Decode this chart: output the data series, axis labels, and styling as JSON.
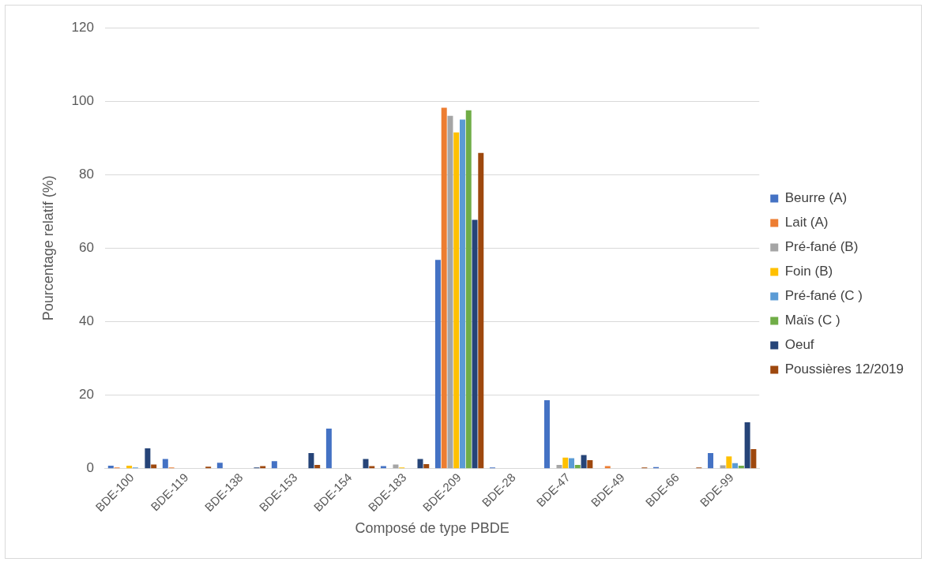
{
  "chart_data": {
    "type": "bar",
    "xlabel": "Composé de type PBDE",
    "ylabel": "Pourcentage relatif (%)",
    "categories": [
      "BDE-100",
      "BDE-119",
      "BDE-138",
      "BDE-153",
      "BDE-154",
      "BDE-183",
      "BDE-209",
      "BDE-28",
      "BDE-47",
      "BDE-49",
      "BDE-66",
      "BDE-99"
    ],
    "series": [
      {
        "name": "Beurre (A)",
        "color": "#4472c4",
        "values": [
          0.8,
          2.6,
          1.6,
          2.0,
          10.9,
          0.7,
          56.8,
          0.3,
          18.6,
          null,
          0.4,
          4.2
        ]
      },
      {
        "name": "Lait (A)",
        "color": "#ed7d31",
        "values": [
          0.3,
          0.3,
          0,
          0,
          0,
          0,
          98.2,
          0,
          0,
          0.7,
          0,
          0
        ]
      },
      {
        "name": "Pré-fané (B)",
        "color": "#a5a5a5",
        "values": [
          0,
          0,
          0,
          0,
          null,
          1.1,
          96,
          0,
          1.0,
          0,
          0,
          0.9
        ]
      },
      {
        "name": "Foin (B)",
        "color": "#ffc000",
        "values": [
          0.8,
          0,
          0,
          null,
          null,
          0.3,
          91.5,
          0,
          3.0,
          0,
          0,
          3.3
        ]
      },
      {
        "name": "Pré-fané (C )",
        "color": "#5b9bd5",
        "values": [
          0.3,
          0,
          0,
          0,
          0,
          0,
          95,
          0,
          2.8,
          0,
          0,
          1.5
        ]
      },
      {
        "name": "Maïs (C )",
        "color": "#70ad47",
        "values": [
          0,
          0,
          0,
          0,
          0,
          null,
          97.5,
          0,
          1.0,
          0,
          0,
          0.8
        ]
      },
      {
        "name": "Oeuf",
        "color": "#264478",
        "values": [
          5.5,
          0,
          0.3,
          4.2,
          2.6,
          2.6,
          67.7,
          0,
          3.7,
          0,
          0,
          12.6
        ]
      },
      {
        "name": "Poussières 12/2019",
        "color": "#9e480e",
        "values": [
          1.1,
          0.5,
          0.7,
          1.0,
          0.7,
          1.2,
          85.9,
          0,
          2.3,
          0.3,
          0.3,
          5.3
        ]
      }
    ],
    "ylim": [
      0,
      120
    ],
    "yticks": [
      0,
      20,
      40,
      60,
      80,
      100,
      120
    ],
    "grid": "y",
    "legend": "right"
  }
}
